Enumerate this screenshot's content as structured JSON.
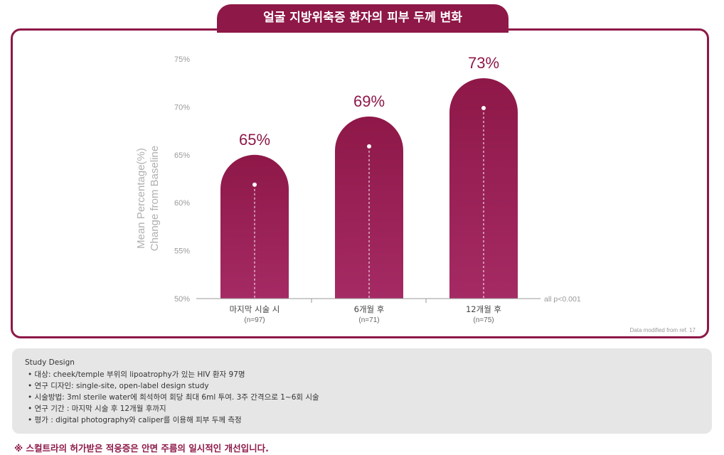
{
  "header": {
    "title": "얼굴 지방위축증 환자의 피부 두께 변화"
  },
  "chart_data": {
    "type": "bar",
    "ylabel_line1": "Mean Percentage(%)",
    "ylabel_line2": "Change from Baseline",
    "ylim": [
      50,
      75
    ],
    "yticks": [
      "50%",
      "55%",
      "60%",
      "65%",
      "70%",
      "75%"
    ],
    "categories": [
      "마지막 시술 시",
      "6개월 후",
      "12개월 후"
    ],
    "sample_sizes": [
      "(n=97)",
      "(n=71)",
      "(n=75)"
    ],
    "values": [
      65,
      69,
      73
    ],
    "value_labels": [
      "65%",
      "69%",
      "73%"
    ],
    "annotation": "all p<0.001",
    "source_note": "Data modified from ref. 17",
    "colors": {
      "bar_top": "#8e1848",
      "bar_bottom": "#a52a64",
      "label": "#8e1848",
      "axis": "#9a9a9a"
    }
  },
  "study_design": {
    "heading": "Study Design",
    "items": [
      "• 대상: cheek/temple 부위의 lipoatrophy가 있는 HIV 환자 97명",
      "• 연구 디자인: single-site, open-label design study",
      "• 시술방법: 3ml sterile water에 희석하여 회당 최대 6ml 투여. 3주 간격으로 1~6회 시술",
      "• 연구 기간 : 마지막 시술 후 12개월 후까지",
      "• 평가 : digital photography와 caliper를 이용해 피부 두께 측정"
    ]
  },
  "footer": {
    "note": "※ 스컬트라의 허가받은 적응증은 안면 주름의 일시적인 개선입니다."
  }
}
